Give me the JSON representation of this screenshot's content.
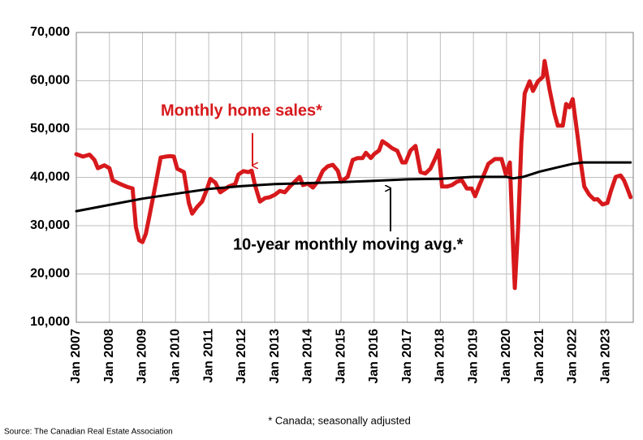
{
  "chart_data": {
    "type": "line",
    "annotations": [
      "Monthly home sales*",
      "10-year monthly moving avg.*",
      "* Canada; seasonally adjusted",
      "Source: The Canadian Real Estate Association"
    ],
    "series": [
      {
        "name": "Monthly home sales*",
        "color": "#d7191c",
        "x": [
          2007.0,
          2007.2,
          2007.4,
          2007.55,
          2007.65,
          2007.85,
          2008.0,
          2008.1,
          2008.3,
          2008.55,
          2008.7,
          2008.8,
          2008.9,
          2009.0,
          2009.1,
          2009.2,
          2009.4,
          2009.55,
          2009.7,
          2009.85,
          2009.95,
          2010.05,
          2010.25,
          2010.4,
          2010.5,
          2010.65,
          2010.8,
          2010.95,
          2011.05,
          2011.2,
          2011.35,
          2011.5,
          2011.6,
          2011.8,
          2011.9,
          2012.05,
          2012.2,
          2012.3,
          2012.4,
          2012.55,
          2012.7,
          2012.85,
          2013.0,
          2013.15,
          2013.3,
          2013.45,
          2013.6,
          2013.75,
          2013.85,
          2014.0,
          2014.15,
          2014.3,
          2014.45,
          2014.6,
          2014.75,
          2014.9,
          2015.0,
          2015.2,
          2015.35,
          2015.5,
          2015.65,
          2015.75,
          2015.9,
          2016.0,
          2016.15,
          2016.25,
          2016.4,
          2016.55,
          2016.7,
          2016.85,
          2016.95,
          2017.1,
          2017.25,
          2017.4,
          2017.55,
          2017.7,
          2017.85,
          2017.95,
          2018.05,
          2018.2,
          2018.35,
          2018.5,
          2018.65,
          2018.8,
          2018.95,
          2019.05,
          2019.2,
          2019.35,
          2019.45,
          2019.65,
          2019.85,
          2019.98,
          2020.1,
          2020.2,
          2020.25,
          2020.35,
          2020.45,
          2020.55,
          2020.7,
          2020.8,
          2020.95,
          2021.1,
          2021.15,
          2021.3,
          2021.45,
          2021.55,
          2021.7,
          2021.8,
          2021.9,
          2022.0,
          2022.15,
          2022.25,
          2022.35,
          2022.5,
          2022.65,
          2022.75,
          2022.9,
          2023.05,
          2023.15,
          2023.3,
          2023.45,
          2023.55,
          2023.65,
          2023.75
        ],
        "values": [
          44800,
          44300,
          44700,
          43600,
          41900,
          42500,
          41900,
          39400,
          38700,
          38000,
          37700,
          29700,
          27000,
          26600,
          28300,
          31700,
          38700,
          44100,
          44300,
          44400,
          44300,
          41800,
          41100,
          34700,
          32500,
          33900,
          35000,
          37600,
          39700,
          38900,
          36900,
          37600,
          38100,
          38600,
          40600,
          41300,
          41100,
          41400,
          38400,
          35000,
          35700,
          35900,
          36400,
          37200,
          36900,
          38100,
          39100,
          40100,
          38400,
          38700,
          37900,
          39200,
          41400,
          42300,
          42600,
          41400,
          39100,
          40100,
          43600,
          44000,
          44000,
          45100,
          44000,
          44800,
          45600,
          47500,
          46800,
          46000,
          45500,
          43100,
          43100,
          45600,
          46500,
          41100,
          40800,
          41800,
          44000,
          45600,
          38100,
          38100,
          38400,
          39100,
          39400,
          37700,
          37700,
          36100,
          38700,
          41100,
          42800,
          43800,
          43800,
          40600,
          43100,
          25500,
          17100,
          29700,
          47300,
          57400,
          59900,
          57900,
          59900,
          60800,
          64100,
          58200,
          53200,
          50700,
          50700,
          55200,
          54500,
          56200,
          48500,
          42800,
          38100,
          36400,
          35400,
          35500,
          34400,
          34700,
          37100,
          40100,
          40400,
          39400,
          37700,
          35900
        ]
      },
      {
        "name": "10-year monthly moving avg.*",
        "color": "#000000",
        "x": [
          2007.0,
          2008.0,
          2009.0,
          2010.0,
          2011.0,
          2012.0,
          2013.0,
          2014.0,
          2015.0,
          2016.0,
          2017.0,
          2018.0,
          2019.0,
          2020.0,
          2020.2,
          2020.5,
          2021.0,
          2021.5,
          2022.0,
          2022.3,
          2023.0,
          2023.75
        ],
        "values": [
          33000,
          34300,
          35600,
          36600,
          37600,
          38200,
          38600,
          38800,
          39000,
          39300,
          39600,
          39700,
          40100,
          40100,
          39800,
          40100,
          41200,
          42000,
          42800,
          43100,
          43100,
          43100
        ]
      }
    ],
    "xlim": [
      2007,
      2023.83
    ],
    "xticks": [
      {
        "value": 2007,
        "label": "Jan 2007"
      },
      {
        "value": 2008,
        "label": "Jan 2008"
      },
      {
        "value": 2009,
        "label": "Jan 2009"
      },
      {
        "value": 2010,
        "label": "Jan 2010"
      },
      {
        "value": 2011,
        "label": "Jan 2011"
      },
      {
        "value": 2012,
        "label": "Jan 2012"
      },
      {
        "value": 2013,
        "label": "Jan 2013"
      },
      {
        "value": 2014,
        "label": "Jan 2014"
      },
      {
        "value": 2015,
        "label": "Jan 2015"
      },
      {
        "value": 2016,
        "label": "Jan 2016"
      },
      {
        "value": 2017,
        "label": "Jan 2017"
      },
      {
        "value": 2018,
        "label": "Jan 2018"
      },
      {
        "value": 2019,
        "label": "Jan 2019"
      },
      {
        "value": 2020,
        "label": "Jan 2020"
      },
      {
        "value": 2021,
        "label": "Jan 2021"
      },
      {
        "value": 2022,
        "label": "Jan 2022"
      },
      {
        "value": 2023,
        "label": "Jan 2023"
      }
    ],
    "ylim": [
      10000,
      70000
    ],
    "yticks": [
      {
        "value": 10000,
        "label": "10,000"
      },
      {
        "value": 20000,
        "label": "20,000"
      },
      {
        "value": 30000,
        "label": "30,000"
      },
      {
        "value": 40000,
        "label": "40,000"
      },
      {
        "value": 50000,
        "label": "50,000"
      },
      {
        "value": 60000,
        "label": "60,000"
      },
      {
        "value": 70000,
        "label": "70,000"
      }
    ],
    "grid": true
  }
}
